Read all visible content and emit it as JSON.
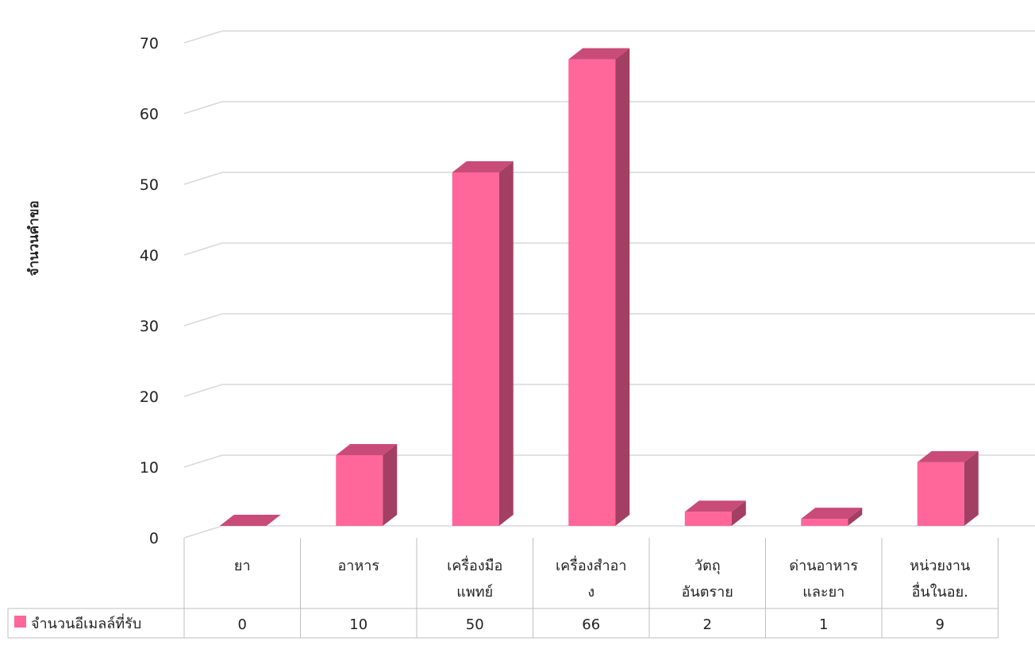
{
  "chart_data": {
    "type": "bar",
    "style": "3d-column-with-data-table",
    "ylabel": "จำนวนคำขอ",
    "xlabel": "",
    "ylim": [
      0,
      70
    ],
    "yticks": [
      0,
      10,
      20,
      30,
      40,
      50,
      60,
      70
    ],
    "grid": true,
    "categories": [
      [
        "ยา"
      ],
      [
        "อาหาร"
      ],
      [
        "เครื่องมือ",
        "แพทย์"
      ],
      [
        "เครื่องสำอา",
        "ง"
      ],
      [
        "วัตถุ",
        "อันตราย"
      ],
      [
        "ด่านอาหาร",
        "และยา"
      ],
      [
        "หน่วยงาน",
        "อื่นในอย."
      ]
    ],
    "series": [
      {
        "name": "จำนวนอีเมลล์ที่รับ",
        "values": [
          0,
          10,
          50,
          66,
          2,
          1,
          9
        ]
      }
    ],
    "colors": {
      "bar_front": "#FF6699",
      "bar_top": "#C94B78",
      "bar_side": "#A33F62",
      "grid": "#D9D9D9",
      "table_border": "#BFBFBF"
    }
  }
}
